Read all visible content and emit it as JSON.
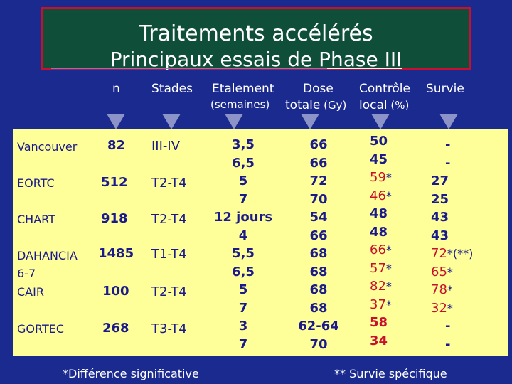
{
  "title": {
    "line1": "Traitements accélérés",
    "line2": "Principaux essais de Phase III"
  },
  "headers": {
    "n": "n",
    "stades": "Stades",
    "etalement": "Etalement",
    "etalement_unit": "(semaines)",
    "dose": "Dose",
    "dose_word": "totale",
    "dose_unit": "(Gy)",
    "controle": "Contrôle",
    "controle_word": "local",
    "controle_unit": "(%)",
    "survie": "Survie"
  },
  "trials": [
    {
      "name": "Vancouver",
      "n": "82",
      "stades": "III-IV"
    },
    {
      "name": "EORTC",
      "n": "512",
      "stades": "T2-T4"
    },
    {
      "name": "CHART",
      "n": "918",
      "stades": "T2-T4"
    },
    {
      "name": "DAHANCIA",
      "name2": "6-7",
      "n": "1485",
      "stades": "T1-T4"
    },
    {
      "name": "CAIR",
      "n": "100",
      "stades": "T2-T4"
    },
    {
      "name": "GORTEC",
      "n": "268",
      "stades": "T3-T4"
    }
  ],
  "etalement_values": [
    "3,5",
    "6,5",
    "5",
    "7",
    "12 jours",
    "4",
    "5,5",
    "6,5",
    "5",
    "7",
    "3",
    "7"
  ],
  "dose_values": [
    "66",
    "66",
    "72",
    "70",
    "54",
    "66",
    "68",
    "68",
    "68",
    "68",
    "62-64",
    "70"
  ],
  "controle_values": [
    {
      "v": "50",
      "red": false,
      "mark": ""
    },
    {
      "v": "45",
      "red": false,
      "mark": ""
    },
    {
      "v": "59",
      "red": true,
      "mark": "*"
    },
    {
      "v": "46",
      "red": true,
      "mark": "*"
    },
    {
      "v": "48",
      "red": false,
      "mark": ""
    },
    {
      "v": "48",
      "red": false,
      "mark": ""
    },
    {
      "v": "66",
      "red": true,
      "mark": "*"
    },
    {
      "v": "57",
      "red": true,
      "mark": "*"
    },
    {
      "v": "82",
      "red": true,
      "mark": "*"
    },
    {
      "v": "37",
      "red": true,
      "mark": "*"
    },
    {
      "v": "58",
      "red": true,
      "mark": ""
    },
    {
      "v": "34",
      "red": true,
      "mark": ""
    }
  ],
  "survie_values": [
    {
      "v": "-",
      "red": false,
      "mark": ""
    },
    {
      "v": "-",
      "red": false,
      "mark": ""
    },
    {
      "v": "27",
      "red": false,
      "mark": ""
    },
    {
      "v": "25",
      "red": false,
      "mark": ""
    },
    {
      "v": "43",
      "red": false,
      "mark": ""
    },
    {
      "v": "43",
      "red": false,
      "mark": ""
    },
    {
      "v": "72",
      "red": true,
      "mark": "*(**)"
    },
    {
      "v": "65",
      "red": true,
      "mark": "*"
    },
    {
      "v": "78",
      "red": true,
      "mark": "*"
    },
    {
      "v": "32",
      "red": true,
      "mark": "*"
    },
    {
      "v": "-",
      "red": false,
      "mark": ""
    },
    {
      "v": "-",
      "red": false,
      "mark": ""
    }
  ],
  "footnotes": {
    "left": "*Différence significative",
    "right": "** Survie spécifique"
  },
  "colors": {
    "background": "#1b2a8f",
    "title_box": "#0f4f3a",
    "panel": "#ffff99",
    "text_blue": "#1a1a8c",
    "text_red": "#c8102e"
  }
}
